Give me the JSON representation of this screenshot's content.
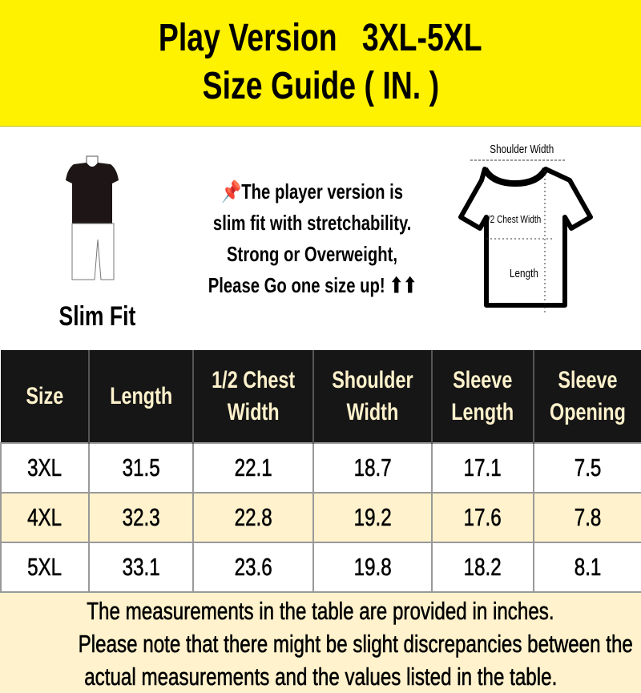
{
  "header": {
    "title_line1": "Play Version   3XL-5XL",
    "title_line2": "Size Guide ( IN. )"
  },
  "fit": {
    "label": "Slim Fit"
  },
  "note": {
    "icon": "pushpin-icon",
    "lines": [
      "The player version is",
      "slim fit with stretchability.",
      "Strong or Overweight,",
      "Please Go one size up! ⬆⬆"
    ]
  },
  "diagram": {
    "shoulder": "Shoulder Width",
    "chest": "1/2 Chest Width",
    "length": "Length"
  },
  "table": {
    "headers": [
      "Size",
      "Length",
      "1/2 Chest Width",
      "Shoulder Width",
      "Sleeve Length",
      "Sleeve Opening"
    ],
    "rows": [
      [
        "3XL",
        "31.5",
        "22.1",
        "18.7",
        "17.1",
        "7.5"
      ],
      [
        "4XL",
        "32.3",
        "22.8",
        "19.2",
        "17.6",
        "7.8"
      ],
      [
        "5XL",
        "33.1",
        "23.6",
        "19.8",
        "18.2",
        "8.1"
      ]
    ]
  },
  "footer": {
    "lines": [
      "The measurements in the table are provided in inches.",
      "Please note that there might be slight discrepancies between the",
      "actual measurements and the values listed in the table."
    ]
  },
  "colors": {
    "header_bg": "#FFF200",
    "table_header_bg": "#161616",
    "table_header_text": "#FFF2CC",
    "alt_row": "#FFF2CC"
  }
}
